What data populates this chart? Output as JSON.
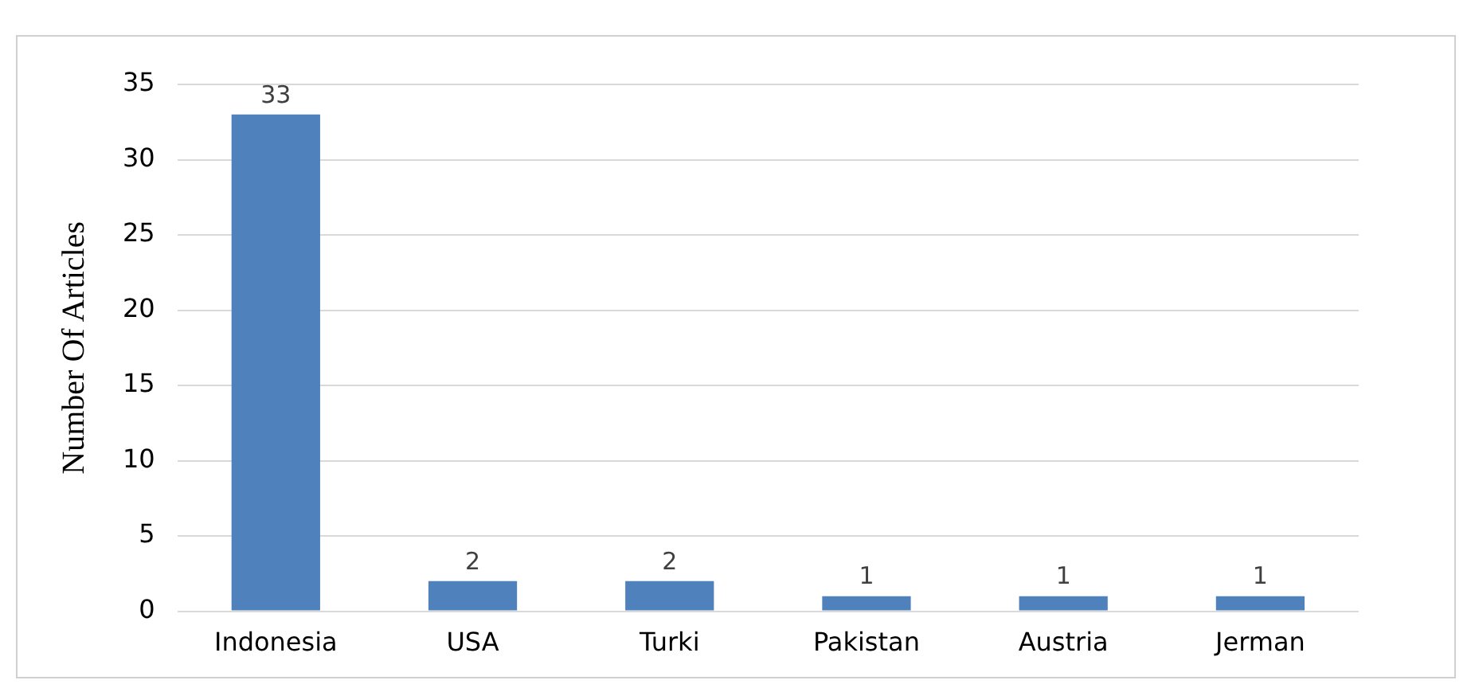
{
  "chart_data": {
    "type": "bar",
    "ylabel": "Number Of Articles",
    "categories": [
      "Indonesia",
      "USA",
      "Turki",
      "Pakistan",
      "Austria",
      "Jerman"
    ],
    "values": [
      33,
      2,
      2,
      1,
      1,
      1
    ],
    "color": "#4f81bd",
    "ylim": [
      0,
      35
    ],
    "yticks": [
      0,
      5,
      10,
      15,
      20,
      25,
      30,
      35
    ],
    "grid": "y",
    "data_labels": true,
    "legend": false
  }
}
